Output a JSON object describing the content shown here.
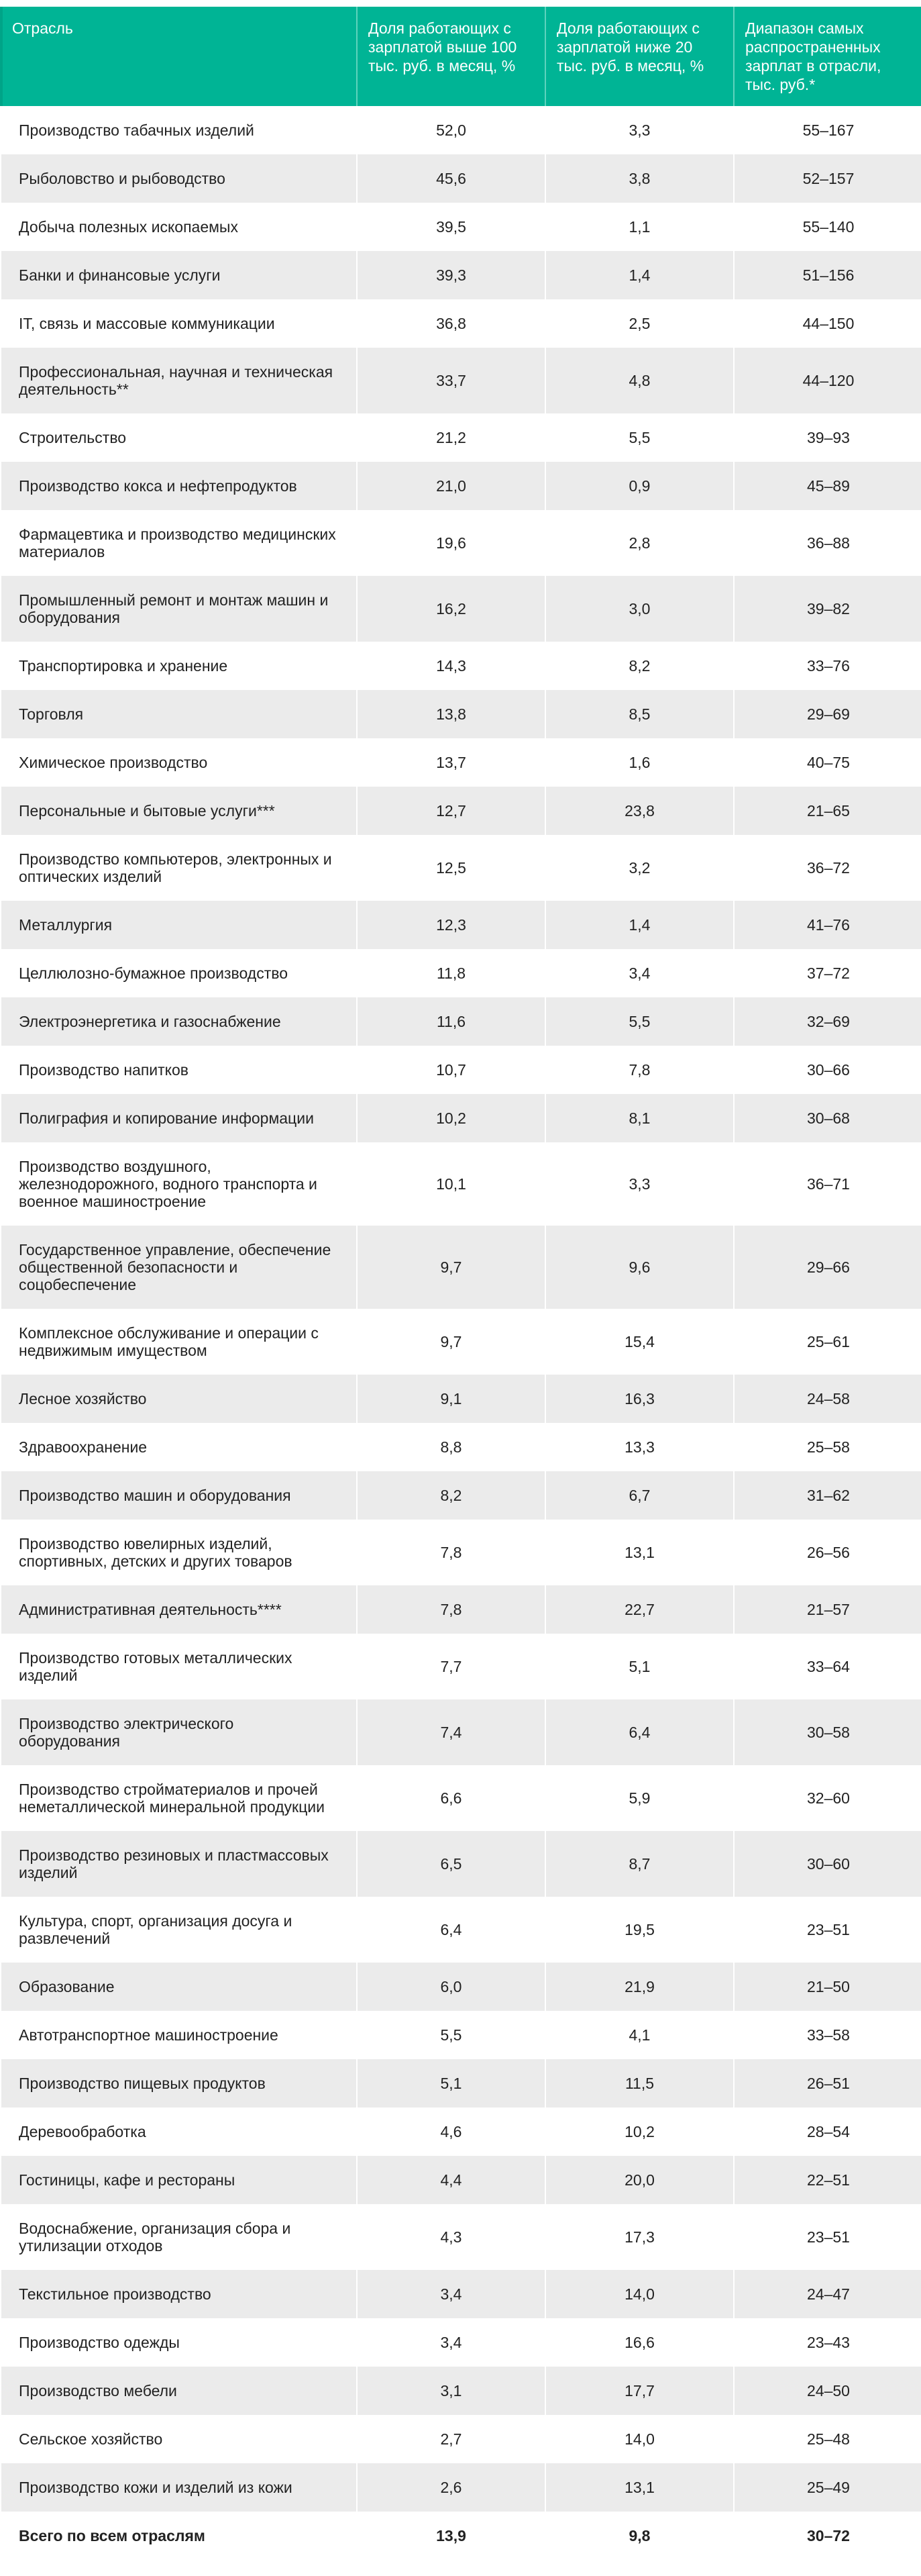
{
  "table": {
    "headers": [
      "Отрасль",
      "Доля работающих с зарплатой выше 100 тыс. руб. в месяц, %",
      "Доля работающих с зарплатой ниже 20 тыс. руб. в месяц, %",
      "Диапазон самых распространенных зарплат в отрасли, тыс. руб.*"
    ],
    "rows": [
      [
        "Производство табачных изделий",
        "52,0",
        "3,3",
        "55–167"
      ],
      [
        "Рыболовство и рыбоводство",
        "45,6",
        "3,8",
        "52–157"
      ],
      [
        "Добыча полезных ископаемых",
        "39,5",
        "1,1",
        "55–140"
      ],
      [
        "Банки и финансовые услуги",
        "39,3",
        "1,4",
        "51–156"
      ],
      [
        "IT, связь и массовые коммуникации",
        "36,8",
        "2,5",
        "44–150"
      ],
      [
        "Профессиональная, научная и техническая деятельность**",
        "33,7",
        "4,8",
        "44–120"
      ],
      [
        "Строительство",
        "21,2",
        "5,5",
        "39–93"
      ],
      [
        "Производство кокса и нефтепродуктов",
        "21,0",
        "0,9",
        "45–89"
      ],
      [
        "Фармацевтика и производство медицинских материалов",
        "19,6",
        "2,8",
        "36–88"
      ],
      [
        "Промышленный ремонт и монтаж машин и оборудования",
        "16,2",
        "3,0",
        "39–82"
      ],
      [
        "Транспортировка и хранение",
        "14,3",
        "8,2",
        "33–76"
      ],
      [
        "Торговля",
        "13,8",
        "8,5",
        "29–69"
      ],
      [
        "Химическое производство",
        "13,7",
        "1,6",
        "40–75"
      ],
      [
        "Персональные и бытовые услуги***",
        "12,7",
        "23,8",
        "21–65"
      ],
      [
        "Производство компьютеров, электронных и оптических изделий",
        "12,5",
        "3,2",
        "36–72"
      ],
      [
        "Металлургия",
        "12,3",
        "1,4",
        "41–76"
      ],
      [
        "Целлюлозно-бумажное производство",
        "11,8",
        "3,4",
        "37–72"
      ],
      [
        "Электроэнергетика и газоснабжение",
        "11,6",
        "5,5",
        "32–69"
      ],
      [
        "Производство напитков",
        "10,7",
        "7,8",
        "30–66"
      ],
      [
        "Полиграфия и копирование информации",
        "10,2",
        "8,1",
        "30–68"
      ],
      [
        "Производство воздушного, железнодорожного, водного транспорта и военное машиностроение",
        "10,1",
        "3,3",
        "36–71"
      ],
      [
        "Государственное управление, обеспечение общественной безопасности и соцобеспечение",
        "9,7",
        "9,6",
        "29–66"
      ],
      [
        "Комплексное обслуживание и операции с недвижимым имуществом",
        "9,7",
        "15,4",
        "25–61"
      ],
      [
        "Лесное хозяйство",
        "9,1",
        "16,3",
        "24–58"
      ],
      [
        "Здравоохранение",
        "8,8",
        "13,3",
        "25–58"
      ],
      [
        "Производство машин и оборудования",
        "8,2",
        "6,7",
        "31–62"
      ],
      [
        "Производство ювелирных изделий, спортивных, детских и других товаров",
        "7,8",
        "13,1",
        "26–56"
      ],
      [
        "Административная деятельность****",
        "7,8",
        "22,7",
        "21–57"
      ],
      [
        "Производство готовых металлических изделий",
        "7,7",
        "5,1",
        "33–64"
      ],
      [
        "Производство электрического оборудования",
        "7,4",
        "6,4",
        "30–58"
      ],
      [
        "Производство стройматериалов и прочей неметаллической минеральной продукции",
        "6,6",
        "5,9",
        "32–60"
      ],
      [
        "Производство резиновых и пластмассовых изделий",
        "6,5",
        "8,7",
        "30–60"
      ],
      [
        "Культура, спорт, организация досуга и развлечений",
        "6,4",
        "19,5",
        "23–51"
      ],
      [
        "Образование",
        "6,0",
        "21,9",
        "21–50"
      ],
      [
        "Автотранспортное машиностроение",
        "5,5",
        "4,1",
        "33–58"
      ],
      [
        "Производство пищевых продуктов",
        "5,1",
        "11,5",
        "26–51"
      ],
      [
        "Деревообработка",
        "4,6",
        "10,2",
        "28–54"
      ],
      [
        "Гостиницы, кафе и рестораны",
        "4,4",
        "20,0",
        "22–51"
      ],
      [
        "Водоснабжение, организация сбора и утилизации отходов",
        "4,3",
        "17,3",
        "23–51"
      ],
      [
        "Текстильное производство",
        "3,4",
        "14,0",
        "24–47"
      ],
      [
        "Производство одежды",
        "3,4",
        "16,6",
        "23–43"
      ],
      [
        "Производство мебели",
        "3,1",
        "17,7",
        "24–50"
      ],
      [
        "Сельское хозяйство",
        "2,7",
        "14,0",
        "25–48"
      ],
      [
        "Производство кожи и изделий из кожи",
        "2,6",
        "13,1",
        "25–49"
      ]
    ],
    "total": [
      "Всего по всем отраслям",
      "13,9",
      "9,8",
      "30–72"
    ]
  },
  "colors": {
    "header": "#00b495",
    "stripe": "#ebebeb"
  }
}
